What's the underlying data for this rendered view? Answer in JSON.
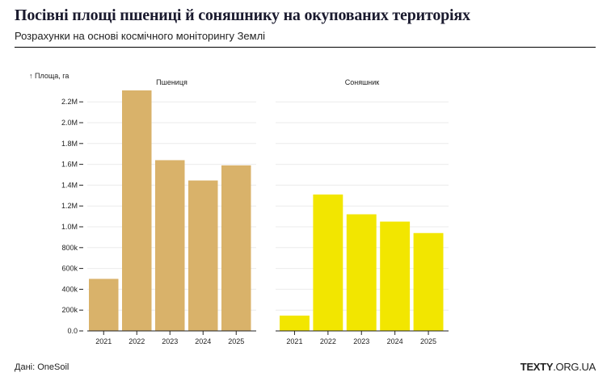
{
  "header": {
    "title": "Посівні площі пшениці й соняшнику на окупованих територіях",
    "subtitle": "Розрахунки на основі космічного моніторингу Землі"
  },
  "footer": {
    "source": "Дані: OneSoil",
    "logo_bold": "TEXTY",
    "logo_rest": ".ORG.UA"
  },
  "chart_data": {
    "type": "bar",
    "ylabel": "↑ Площа, га",
    "ylim": [
      0,
      2300000
    ],
    "yticks": [
      0,
      200000,
      400000,
      600000,
      800000,
      1000000,
      1200000,
      1400000,
      1600000,
      1800000,
      2000000,
      2200000
    ],
    "ytick_labels": [
      "0.0",
      "200k",
      "400k",
      "600k",
      "800k",
      "1.0M",
      "1.2M",
      "1.4M",
      "1.6M",
      "1.8M",
      "2.0M",
      "2.2M"
    ],
    "grid": true,
    "categories": [
      "2021",
      "2022",
      "2023",
      "2024",
      "2025"
    ],
    "panels": [
      {
        "name": "Пшениця",
        "color": "#d9b26a",
        "values": [
          500000,
          2310000,
          1640000,
          1445000,
          1590000
        ]
      },
      {
        "name": "Соняшник",
        "color": "#f2e600",
        "values": [
          147000,
          1310000,
          1120000,
          1050000,
          940000
        ]
      }
    ]
  }
}
